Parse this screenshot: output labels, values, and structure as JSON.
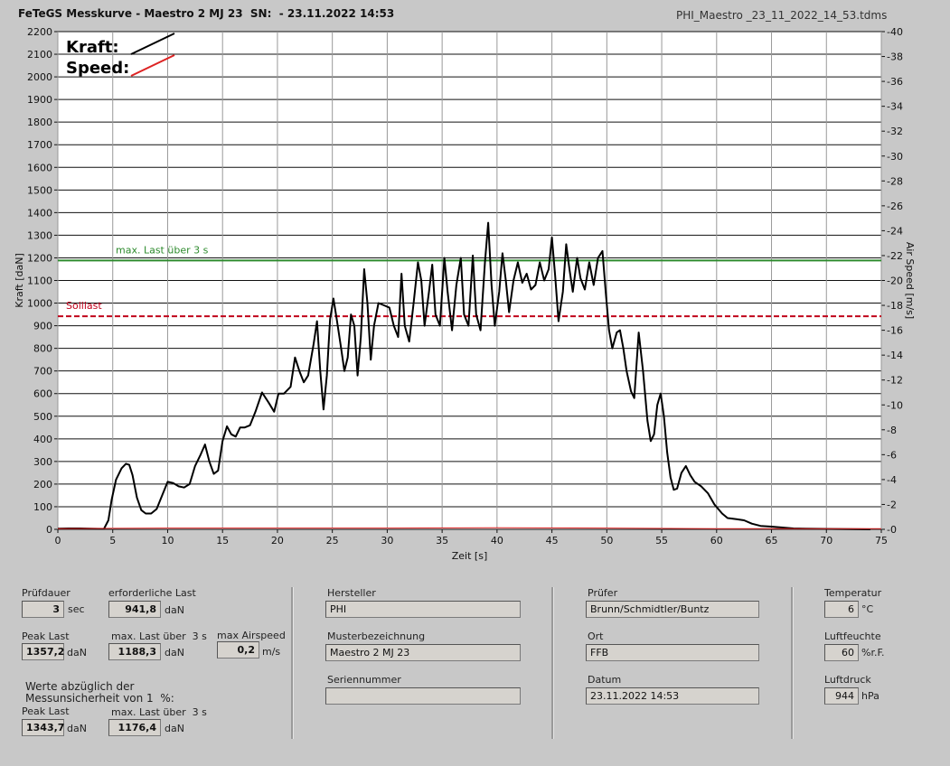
{
  "header": {
    "title": "FeTeGS Messkurve - Maestro 2 MJ 23  SN:  - 23.11.2022 14:53",
    "file": "PHI_Maestro _23_11_2022_14_53.tdms"
  },
  "chart_data": {
    "type": "line",
    "xlabel": "Zeit [s]",
    "ylabel": "Kraft [daN]",
    "y2label": "Air Speed [m/s]",
    "xlim": [
      0,
      75
    ],
    "ylim": [
      0,
      2200
    ],
    "y2lim": [
      0,
      40
    ],
    "x_ticks": [
      0,
      5,
      10,
      15,
      20,
      25,
      30,
      35,
      40,
      45,
      50,
      55,
      60,
      65,
      70,
      75
    ],
    "y_ticks": [
      0,
      100,
      200,
      300,
      400,
      500,
      600,
      700,
      800,
      900,
      1000,
      1100,
      1200,
      1300,
      1400,
      1500,
      1600,
      1700,
      1800,
      1900,
      2000,
      2100,
      2200
    ],
    "y2_ticks": [
      0,
      2,
      4,
      6,
      8,
      10,
      12,
      14,
      16,
      18,
      20,
      22,
      24,
      26,
      28,
      30,
      32,
      34,
      36,
      38,
      40
    ],
    "grid": true,
    "legend": {
      "position": "top-left",
      "kraft_label": "Kraft:",
      "speed_label": "Speed:",
      "kraft_color": "#000000",
      "speed_color": "#dd2222"
    },
    "reference_lines": [
      {
        "name": "max. Last über  3 s",
        "y": 1188.3,
        "color": "#2e8b2e",
        "style": "solid"
      },
      {
        "name": "Solllast",
        "y": 941.8,
        "color": "#c0001a",
        "style": "dashed"
      }
    ],
    "series": [
      {
        "name": "Kraft",
        "color": "#000000",
        "points": [
          [
            0,
            3
          ],
          [
            1,
            4
          ],
          [
            2,
            4
          ],
          [
            3,
            3
          ],
          [
            4.2,
            2
          ],
          [
            4.6,
            40
          ],
          [
            4.9,
            130
          ],
          [
            5.3,
            220
          ],
          [
            5.8,
            270
          ],
          [
            6.2,
            290
          ],
          [
            6.5,
            285
          ],
          [
            6.8,
            240
          ],
          [
            7.2,
            140
          ],
          [
            7.6,
            85
          ],
          [
            8,
            70
          ],
          [
            8.5,
            70
          ],
          [
            9,
            90
          ],
          [
            9.5,
            150
          ],
          [
            10,
            210
          ],
          [
            10.5,
            205
          ],
          [
            11,
            190
          ],
          [
            11.5,
            185
          ],
          [
            12,
            200
          ],
          [
            12.5,
            280
          ],
          [
            13,
            330
          ],
          [
            13.4,
            375
          ],
          [
            13.8,
            300
          ],
          [
            14.2,
            245
          ],
          [
            14.6,
            260
          ],
          [
            15,
            390
          ],
          [
            15.4,
            455
          ],
          [
            15.8,
            420
          ],
          [
            16.2,
            410
          ],
          [
            16.6,
            450
          ],
          [
            17,
            450
          ],
          [
            17.5,
            460
          ],
          [
            18,
            520
          ],
          [
            18.6,
            605
          ],
          [
            19.2,
            560
          ],
          [
            19.7,
            520
          ],
          [
            20.1,
            600
          ],
          [
            20.6,
            600
          ],
          [
            21.2,
            630
          ],
          [
            21.6,
            760
          ],
          [
            22,
            700
          ],
          [
            22.4,
            650
          ],
          [
            22.8,
            680
          ],
          [
            23.3,
            820
          ],
          [
            23.6,
            920
          ],
          [
            23.9,
            700
          ],
          [
            24.2,
            530
          ],
          [
            24.5,
            680
          ],
          [
            24.8,
            930
          ],
          [
            25.1,
            1020
          ],
          [
            25.4,
            930
          ],
          [
            25.8,
            800
          ],
          [
            26.1,
            700
          ],
          [
            26.4,
            760
          ],
          [
            26.7,
            950
          ],
          [
            27,
            900
          ],
          [
            27.3,
            680
          ],
          [
            27.6,
            850
          ],
          [
            27.9,
            1150
          ],
          [
            28.2,
            1000
          ],
          [
            28.5,
            750
          ],
          [
            28.8,
            900
          ],
          [
            29.2,
            1000
          ],
          [
            29.7,
            990
          ],
          [
            30.2,
            980
          ],
          [
            30.6,
            900
          ],
          [
            31,
            850
          ],
          [
            31.3,
            1130
          ],
          [
            31.6,
            900
          ],
          [
            32,
            830
          ],
          [
            32.4,
            1000
          ],
          [
            32.8,
            1180
          ],
          [
            33.1,
            1100
          ],
          [
            33.4,
            900
          ],
          [
            33.8,
            1050
          ],
          [
            34.1,
            1170
          ],
          [
            34.4,
            950
          ],
          [
            34.8,
            900
          ],
          [
            35.2,
            1200
          ],
          [
            35.5,
            1050
          ],
          [
            35.9,
            880
          ],
          [
            36.3,
            1080
          ],
          [
            36.7,
            1200
          ],
          [
            37,
            950
          ],
          [
            37.4,
            900
          ],
          [
            37.8,
            1210
          ],
          [
            38.1,
            950
          ],
          [
            38.5,
            880
          ],
          [
            38.9,
            1180
          ],
          [
            39.2,
            1355
          ],
          [
            39.5,
            1080
          ],
          [
            39.8,
            900
          ],
          [
            40.2,
            1050
          ],
          [
            40.5,
            1220
          ],
          [
            40.8,
            1100
          ],
          [
            41.1,
            960
          ],
          [
            41.5,
            1100
          ],
          [
            41.9,
            1180
          ],
          [
            42.3,
            1090
          ],
          [
            42.7,
            1130
          ],
          [
            43.1,
            1060
          ],
          [
            43.5,
            1080
          ],
          [
            43.9,
            1180
          ],
          [
            44.3,
            1100
          ],
          [
            44.7,
            1150
          ],
          [
            45,
            1290
          ],
          [
            45.3,
            1120
          ],
          [
            45.6,
            920
          ],
          [
            46,
            1050
          ],
          [
            46.3,
            1260
          ],
          [
            46.6,
            1150
          ],
          [
            46.9,
            1050
          ],
          [
            47.3,
            1200
          ],
          [
            47.6,
            1110
          ],
          [
            48,
            1060
          ],
          [
            48.4,
            1180
          ],
          [
            48.8,
            1080
          ],
          [
            49.2,
            1200
          ],
          [
            49.6,
            1230
          ],
          [
            49.9,
            1050
          ],
          [
            50.2,
            880
          ],
          [
            50.5,
            800
          ],
          [
            50.9,
            870
          ],
          [
            51.2,
            880
          ],
          [
            51.5,
            800
          ],
          [
            51.8,
            700
          ],
          [
            52.2,
            610
          ],
          [
            52.5,
            580
          ],
          [
            52.9,
            870
          ],
          [
            53.3,
            700
          ],
          [
            53.7,
            480
          ],
          [
            54,
            390
          ],
          [
            54.3,
            420
          ],
          [
            54.6,
            550
          ],
          [
            54.9,
            600
          ],
          [
            55.2,
            500
          ],
          [
            55.5,
            340
          ],
          [
            55.8,
            230
          ],
          [
            56.1,
            175
          ],
          [
            56.4,
            180
          ],
          [
            56.8,
            250
          ],
          [
            57.2,
            280
          ],
          [
            57.6,
            240
          ],
          [
            58,
            210
          ],
          [
            58.6,
            190
          ],
          [
            59.2,
            160
          ],
          [
            59.8,
            110
          ],
          [
            60.5,
            70
          ],
          [
            61,
            50
          ],
          [
            61.8,
            45
          ],
          [
            62.5,
            40
          ],
          [
            63.2,
            25
          ],
          [
            64,
            15
          ],
          [
            65,
            12
          ],
          [
            66,
            8
          ],
          [
            67,
            4
          ],
          [
            68,
            3
          ],
          [
            70,
            2
          ],
          [
            72,
            1
          ],
          [
            74,
            0
          ]
        ]
      },
      {
        "name": "Speed",
        "color": "#dd2222",
        "points": [
          [
            0,
            0.05
          ],
          [
            10,
            0.1
          ],
          [
            20,
            0.1
          ],
          [
            30,
            0.1
          ],
          [
            40,
            0.12
          ],
          [
            50,
            0.1
          ],
          [
            60,
            0.05
          ],
          [
            75,
            0.05
          ]
        ]
      }
    ]
  },
  "panel": {
    "pruefdauer": {
      "label": "Prüfdauer",
      "value": "3",
      "unit": "sec"
    },
    "erforderliche_last": {
      "label": "erforderliche Last",
      "value": "941,8",
      "unit": "daN"
    },
    "peak_last": {
      "label": "Peak Last",
      "value": "1357,2",
      "unit": "daN"
    },
    "max_last": {
      "label": "max. Last über  3 s",
      "value": "1188,3",
      "unit": "daN"
    },
    "max_airspeed": {
      "label": "max Airspeed",
      "value": "0,2",
      "unit": "m/s"
    },
    "werte_note": "Werte abzüglich der\nMessunsicherheit von 1  %:",
    "peak_last_2": {
      "label": "Peak Last",
      "value": "1343,7",
      "unit": "daN"
    },
    "max_last_2": {
      "label": "max. Last über  3 s",
      "value": "1176,4",
      "unit": "daN"
    },
    "hersteller": {
      "label": "Hersteller",
      "value": "PHI"
    },
    "musterbezeichnung": {
      "label": "Musterbezeichnung",
      "value": "Maestro 2 MJ 23"
    },
    "seriennummer": {
      "label": "Seriennummer",
      "value": ""
    },
    "pruefer": {
      "label": "Prüfer",
      "value": "Brunn/Schmidtler/Buntz"
    },
    "ort": {
      "label": "Ort",
      "value": "FFB"
    },
    "datum": {
      "label": "Datum",
      "value": "23.11.2022 14:53"
    },
    "temperatur": {
      "label": "Temperatur",
      "value": "6",
      "unit": "°C"
    },
    "luftfeuchte": {
      "label": "Luftfeuchte",
      "value": "60",
      "unit": "%r.F."
    },
    "luftdruck": {
      "label": "Luftdruck",
      "value": "944",
      "unit": "hPa"
    }
  }
}
